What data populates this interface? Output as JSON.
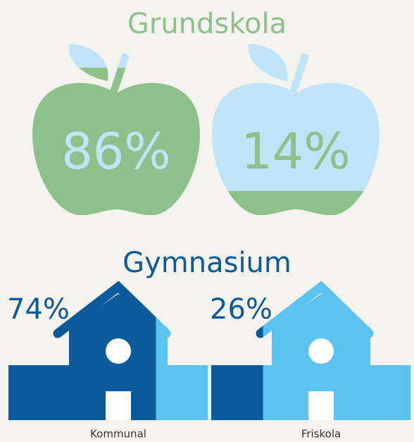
{
  "chart_data": [
    {
      "type": "apple",
      "title": "Grundskola",
      "values": [
        86,
        14
      ],
      "value_labels": [
        "86%",
        "14%"
      ],
      "fill_color": "#8dc08a",
      "empty_color": "#bfe3f7",
      "title_color": "#8dc08a"
    },
    {
      "type": "house",
      "title": "Gymnasium",
      "categories": [
        "Kommunal",
        "Friskola"
      ],
      "values": [
        74,
        26
      ],
      "value_labels": [
        "74%",
        "26%"
      ],
      "fill_color": "#0b5a9c",
      "empty_color": "#5cc3f1",
      "title_color": "#0b5a9c"
    }
  ]
}
